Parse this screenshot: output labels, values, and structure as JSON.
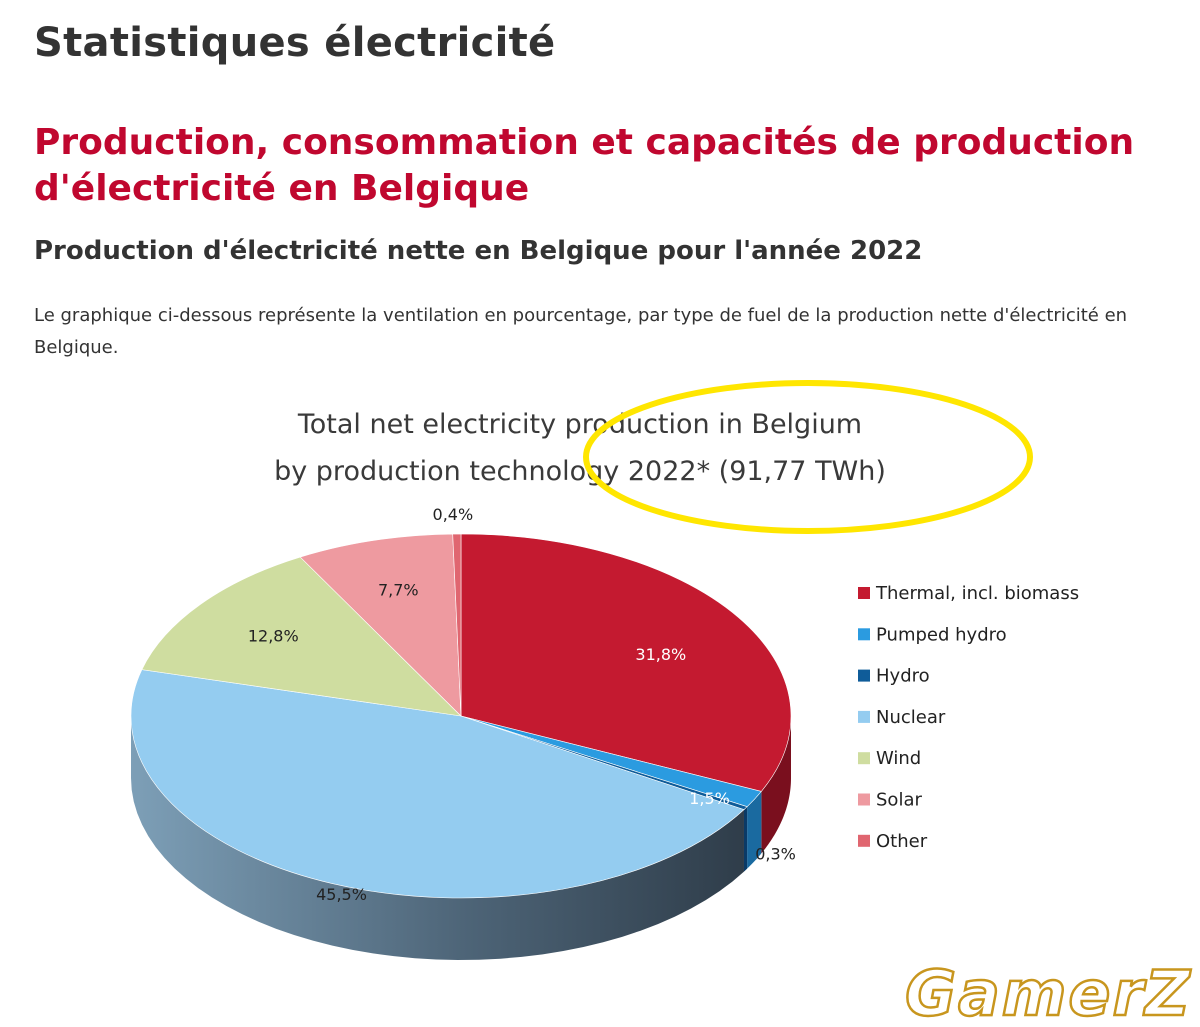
{
  "page": {
    "title": "Statistiques électricité",
    "section_title": "Production, consommation et capacités de production d'électricité en Belgique",
    "subsection_title": "Production d'électricité nette en Belgique pour l'année 2022",
    "description": "Le graphique ci-dessous représente la ventilation en pourcentage, par type de fuel de la production nette d'électricité en Belgique."
  },
  "chart_data": {
    "type": "pie",
    "title_lines": [
      "Total net electricity production in Belgium",
      "by production technology 2022* (91,77 TWh)"
    ],
    "slices": [
      {
        "name": "Thermal, incl. biomass",
        "value": 31.8,
        "label": "31,8%",
        "color": "#c41a30"
      },
      {
        "name": "Pumped hydro",
        "value": 1.5,
        "label": "1,5%",
        "color": "#2b9be0"
      },
      {
        "name": "Hydro",
        "value": 0.3,
        "label": "0,3%",
        "color": "#0f5c99"
      },
      {
        "name": "Nuclear",
        "value": 45.5,
        "label": "45,5%",
        "color": "#94ccf0"
      },
      {
        "name": "Wind",
        "value": 12.8,
        "label": "12,8%",
        "color": "#cfdda0"
      },
      {
        "name": "Solar",
        "value": 7.7,
        "label": "7,7%",
        "color": "#ee9aa0"
      },
      {
        "name": "Other",
        "value": 0.4,
        "label": "0,4%",
        "color": "#e06670"
      }
    ],
    "legend_position": "right",
    "annotation": "yellow ellipse highlighting title"
  },
  "watermark": {
    "text": "GamerZ"
  }
}
